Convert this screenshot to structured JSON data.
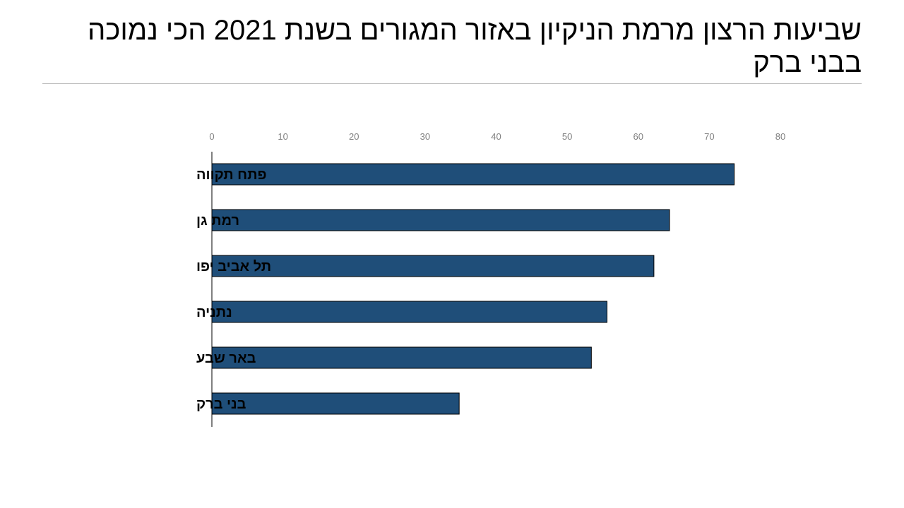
{
  "slide": {
    "title": "שביעות הרצון מרמת הניקיון באזור המגורים בשנת 2021 הכי נמוכה בבני ברק"
  },
  "chart_data": {
    "type": "bar",
    "orientation": "horizontal",
    "title": "",
    "xlabel": "",
    "ylabel": "",
    "xlim": [
      0,
      80
    ],
    "x_ticks": [
      0,
      10,
      20,
      30,
      40,
      50,
      60,
      70,
      80
    ],
    "x_axis_position": "top",
    "grid": false,
    "legend": "none",
    "categories": [
      "פתח תקווה",
      "רמת גן",
      "תל אביב יפו",
      "נתניה",
      "באר שבע",
      "בני ברק"
    ],
    "values": [
      73.5,
      64.4,
      62.2,
      55.6,
      53.4,
      34.8
    ],
    "bar_color": "#1f4e79",
    "bar_edge_color": "#000000"
  }
}
